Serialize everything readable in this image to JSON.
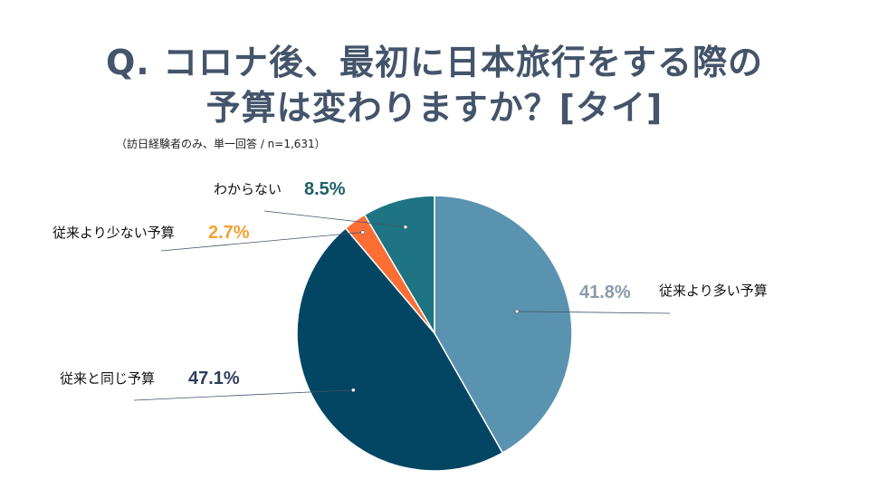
{
  "title": {
    "line1": "Q. コロナ後、最初に日本旅行をする際の",
    "line2": "予算は変わりますか？[タイ]"
  },
  "subtitle": "（訪日経験者のみ、単一回答 / n=1,631）",
  "chart_data": {
    "type": "pie",
    "start_angle": "12 o'clock",
    "direction": "clockwise",
    "slices": [
      {
        "label": "従来より多い予算",
        "value": 41.8,
        "value_label": "41.8%",
        "color": "#5a93b0",
        "label_color": "#8a9aaa"
      },
      {
        "label": "従来と同じ予算",
        "value": 47.1,
        "value_label": "47.1%",
        "color": "#024663",
        "label_color": "#2e3f5c"
      },
      {
        "label": "従来より少ない予算",
        "value": 2.7,
        "value_label": "2.7%",
        "color": "#fd6e35",
        "label_color": "#f2a230"
      },
      {
        "label": "わからない",
        "value": 8.5,
        "value_label": "8.5%",
        "color": "#1e7483",
        "label_color": "#1e5f66"
      }
    ]
  }
}
